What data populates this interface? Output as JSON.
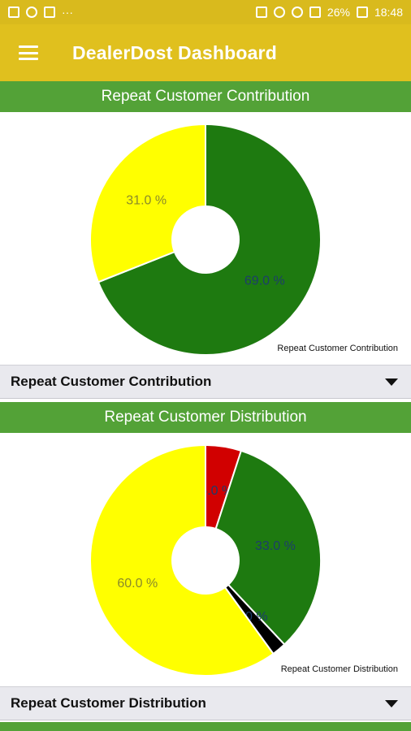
{
  "statusbar": {
    "battery": "26%",
    "time": "18:48",
    "dots": "···"
  },
  "appbar": {
    "title": "DealerDost Dashboard",
    "menu_icon": "hamburger-menu-icon"
  },
  "sections": [
    {
      "header": "Repeat Customer Contribution",
      "dropdown_value": "Repeat Customer Contribution"
    },
    {
      "header": "Repeat Customer Distribution",
      "dropdown_value": "Repeat Customer Distribution"
    }
  ],
  "chart_data": [
    {
      "type": "pie",
      "title": "",
      "legend_caption": "Repeat Customer Contribution",
      "slices": [
        {
          "label": "69.0 %",
          "value": 69.0,
          "color": "#1e7a10"
        },
        {
          "label": "31.0 %",
          "value": 31.0,
          "color": "#ffff00"
        }
      ],
      "donut_hole": true
    },
    {
      "type": "pie",
      "title": "",
      "legend_caption": "Repeat Customer Distribution",
      "slices": [
        {
          "label": "5.0 %",
          "value": 5.0,
          "color": "#d10000"
        },
        {
          "label": "33.0 %",
          "value": 33.0,
          "color": "#1e7a10"
        },
        {
          "label": "2.0 %",
          "value": 2.0,
          "color": "#000000"
        },
        {
          "label": "60.0 %",
          "value": 60.0,
          "color": "#ffff00"
        }
      ],
      "donut_hole": true
    }
  ],
  "colors": {
    "appbar": "#e0c01e",
    "statusbar": "#d9ba1d",
    "section_header": "#53a237",
    "dropdown_bg": "#e9e9ee"
  }
}
